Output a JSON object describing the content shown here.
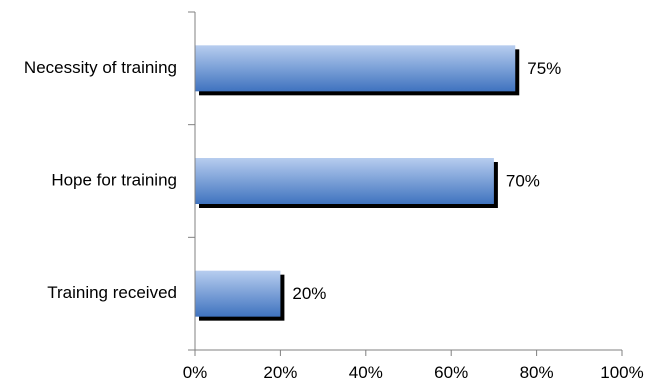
{
  "chart_data": {
    "type": "bar",
    "orientation": "horizontal",
    "categories": [
      "Necessity of training",
      "Hope for training",
      "Training received"
    ],
    "values": [
      75,
      70,
      20
    ],
    "data_labels": [
      "75%",
      "70%",
      "20%"
    ],
    "xlim": [
      0,
      100
    ],
    "x_ticks": [
      0,
      20,
      40,
      60,
      80,
      100
    ],
    "x_tick_labels": [
      "0%",
      "20%",
      "40%",
      "60%",
      "80%",
      "100%"
    ],
    "title": "",
    "xlabel": "",
    "ylabel": "",
    "grid": false,
    "legend": "none",
    "bar_color_light": "#b7cdef",
    "bar_color_dark": "#3f73bf",
    "shadow_color": "#000000"
  }
}
